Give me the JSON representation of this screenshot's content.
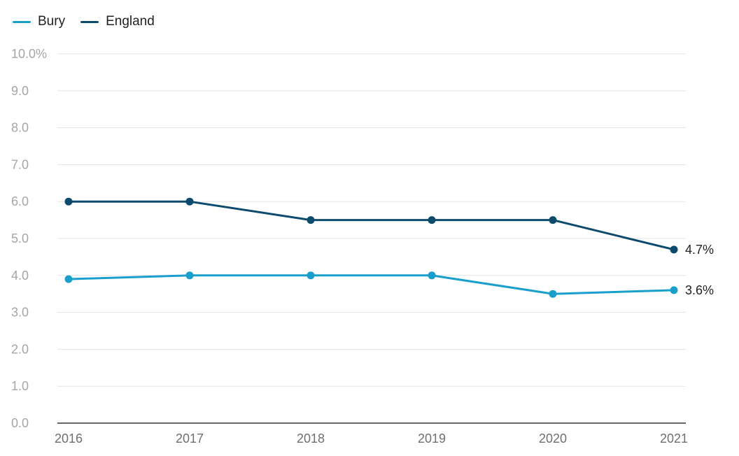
{
  "chart_data": {
    "type": "line",
    "title": "",
    "xlabel": "",
    "ylabel": "",
    "categories": [
      "2016",
      "2017",
      "2018",
      "2019",
      "2020",
      "2021"
    ],
    "ylim": [
      0,
      10
    ],
    "yticks": [
      {
        "value": 0,
        "label": "0.0"
      },
      {
        "value": 1,
        "label": "1.0"
      },
      {
        "value": 2,
        "label": "2.0"
      },
      {
        "value": 3,
        "label": "3.0"
      },
      {
        "value": 4,
        "label": "4.0"
      },
      {
        "value": 5,
        "label": "5.0"
      },
      {
        "value": 6,
        "label": "6.0"
      },
      {
        "value": 7,
        "label": "7.0"
      },
      {
        "value": 8,
        "label": "8.0"
      },
      {
        "value": 9,
        "label": "9.0"
      },
      {
        "value": 10,
        "label": "10.0%"
      }
    ],
    "grid": true,
    "legend_position": "top-left",
    "series": [
      {
        "name": "Bury",
        "color": "#1a9fcc",
        "values": [
          3.9,
          4.0,
          4.0,
          4.0,
          3.5,
          3.6
        ],
        "end_label": "3.6%"
      },
      {
        "name": "England",
        "color": "#0c4a6e",
        "values": [
          6.0,
          6.0,
          5.5,
          5.5,
          5.5,
          4.7
        ],
        "end_label": "4.7%"
      }
    ]
  },
  "legend": [
    {
      "label": "Bury",
      "color": "#1a9fcc"
    },
    {
      "label": "England",
      "color": "#0c4a6e"
    }
  ]
}
